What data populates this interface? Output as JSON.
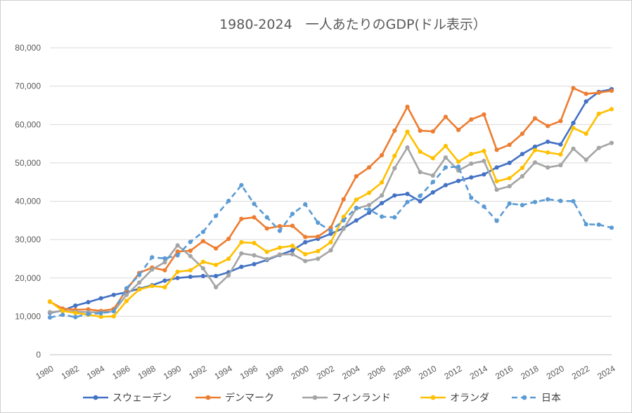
{
  "chart_data": {
    "type": "line",
    "title": "1980-2024　一人あたりのGDP(ドル表示）",
    "xlabel": "",
    "ylabel": "",
    "ylim": [
      0,
      80000
    ],
    "yticks": [
      "0",
      "10,000",
      "20,000",
      "30,000",
      "40,000",
      "50,000",
      "60,000",
      "70,000",
      "80,000"
    ],
    "xticks": [
      "1980",
      "1982",
      "1984",
      "1986",
      "1988",
      "1990",
      "1992",
      "1994",
      "1996",
      "1998",
      "2000",
      "2002",
      "2004",
      "2006",
      "2008",
      "2010",
      "2012",
      "2014",
      "2016",
      "2018",
      "2020",
      "2022",
      "2024"
    ],
    "grid": "horizontal",
    "legend_position": "bottom",
    "x": [
      1980,
      1981,
      1982,
      1983,
      1984,
      1985,
      1986,
      1987,
      1988,
      1989,
      1990,
      1991,
      1992,
      1993,
      1994,
      1995,
      1996,
      1997,
      1998,
      1999,
      2000,
      2001,
      2002,
      2003,
      2004,
      2005,
      2006,
      2007,
      2008,
      2009,
      2010,
      2011,
      2012,
      2013,
      2014,
      2015,
      2016,
      2017,
      2018,
      2019,
      2020,
      2021,
      2022,
      2023,
      2024
    ],
    "series": [
      {
        "name": "スウェーデン",
        "color": "#4472c4",
        "dash": false,
        "values": [
          10900,
          11500,
          12800,
          13700,
          14700,
          15600,
          16300,
          17200,
          18100,
          19300,
          20000,
          20300,
          20500,
          20500,
          21500,
          22900,
          23600,
          24700,
          26000,
          27200,
          29300,
          30200,
          31500,
          33000,
          35000,
          37000,
          39500,
          41500,
          41900,
          40000,
          42300,
          44200,
          45300,
          46200,
          47000,
          48800,
          50000,
          52300,
          54200,
          55500,
          54800,
          60400,
          66000,
          68500,
          69200
        ]
      },
      {
        "name": "デンマーク",
        "color": "#ed7d31",
        "dash": false,
        "values": [
          13800,
          12000,
          11700,
          11800,
          11400,
          11900,
          16900,
          21300,
          22700,
          22000,
          26900,
          27100,
          29600,
          27700,
          30200,
          35400,
          35800,
          32900,
          33500,
          33600,
          30700,
          30800,
          33100,
          40500,
          46500,
          48800,
          52000,
          58400,
          64600,
          58400,
          58200,
          62000,
          58600,
          61300,
          62600,
          53400,
          54700,
          57600,
          61600,
          59600,
          60900,
          69500,
          68000,
          68300,
          68800
        ]
      },
      {
        "name": "フィンランド",
        "color": "#a5a5a5",
        "dash": false,
        "values": [
          11100,
          11400,
          11200,
          11100,
          11000,
          11300,
          15600,
          18800,
          22200,
          24100,
          28500,
          25700,
          22500,
          17600,
          20700,
          26400,
          25900,
          24900,
          26100,
          26200,
          24400,
          25000,
          27200,
          32800,
          38100,
          39000,
          41500,
          48600,
          54000,
          47600,
          46700,
          51400,
          48000,
          49800,
          50500,
          43000,
          43900,
          46500,
          50100,
          48800,
          49400,
          53700,
          50800,
          53900,
          55200
        ]
      },
      {
        "name": "オランダ",
        "color": "#ffc000",
        "dash": false,
        "values": [
          13900,
          11400,
          10900,
          10400,
          9900,
          10000,
          14000,
          17000,
          17900,
          17600,
          21600,
          22000,
          24200,
          23400,
          25000,
          29300,
          29100,
          26800,
          27900,
          28400,
          26200,
          27000,
          29300,
          35900,
          40400,
          42200,
          44900,
          51800,
          58100,
          52900,
          51200,
          54400,
          50300,
          52300,
          53100,
          45200,
          46000,
          48700,
          53300,
          52700,
          52200,
          59100,
          57600,
          62800,
          64000
        ]
      },
      {
        "name": "日本",
        "color": "#5b9bd5",
        "dash": true,
        "values": [
          9700,
          10400,
          9800,
          10600,
          10800,
          11300,
          17300,
          20800,
          25400,
          25100,
          25900,
          29400,
          32000,
          36200,
          40100,
          44200,
          39300,
          35800,
          32300,
          36700,
          39200,
          34400,
          32300,
          35000,
          38300,
          37800,
          36000,
          35800,
          39800,
          41400,
          45000,
          48800,
          49000,
          40900,
          38600,
          34900,
          39400,
          39000,
          39800,
          40500,
          40100,
          40000,
          34000,
          33900,
          33100
        ]
      }
    ]
  }
}
